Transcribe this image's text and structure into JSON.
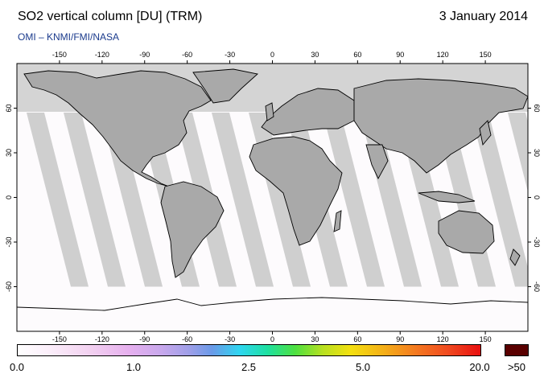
{
  "title": "SO2 vertical column [DU] (TRM)",
  "date": "3 January 2014",
  "credit": "OMI  –  KNMI/FMI/NASA",
  "map": {
    "projection": "equirectangular",
    "lon_ticks": [
      "-150",
      "-120",
      "-90",
      "-60",
      "-30",
      "0",
      "30",
      "60",
      "90",
      "120",
      "150"
    ],
    "lat_ticks": [
      "60",
      "30",
      "0",
      "-30",
      "-60"
    ],
    "no_data_color": "#d4d4d4",
    "swath_color": "#cccccc",
    "land_color": "#a8a8a8"
  },
  "colorbar": {
    "labels": [
      "0.0",
      "1.0",
      "2.5",
      "5.0",
      "20.0",
      ">50"
    ],
    "colors": [
      "#ffffff",
      "#f2d0f0",
      "#9f9fe8",
      "#2ed6f0",
      "#4ee040",
      "#f4e010",
      "#f47a20",
      "#e81010"
    ],
    "overflow_color": "#5a0000"
  }
}
